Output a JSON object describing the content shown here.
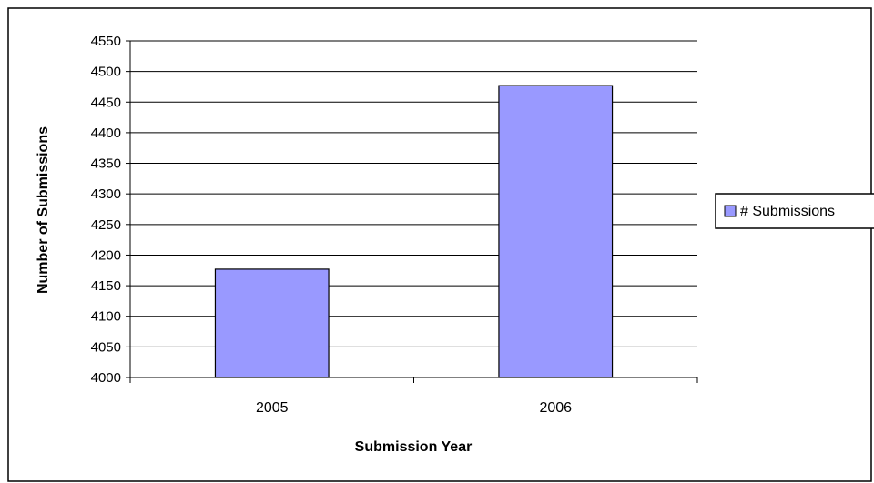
{
  "chart_data": {
    "type": "bar",
    "categories": [
      "2005",
      "2006"
    ],
    "series": [
      {
        "name": "# Submissions",
        "values": [
          4177,
          4477
        ]
      }
    ],
    "xlabel": "Submission Year",
    "ylabel": "Number of Submissions",
    "ylim": [
      4000,
      4550
    ],
    "yticks": [
      4000,
      4050,
      4100,
      4150,
      4200,
      4250,
      4300,
      4350,
      4400,
      4450,
      4500,
      4550
    ],
    "grid": true,
    "legend_position": "right"
  },
  "colors": {
    "bar_fill": "#9999ff",
    "bar_stroke": "#000000",
    "gridline": "#000000",
    "background": "#ffffff"
  }
}
